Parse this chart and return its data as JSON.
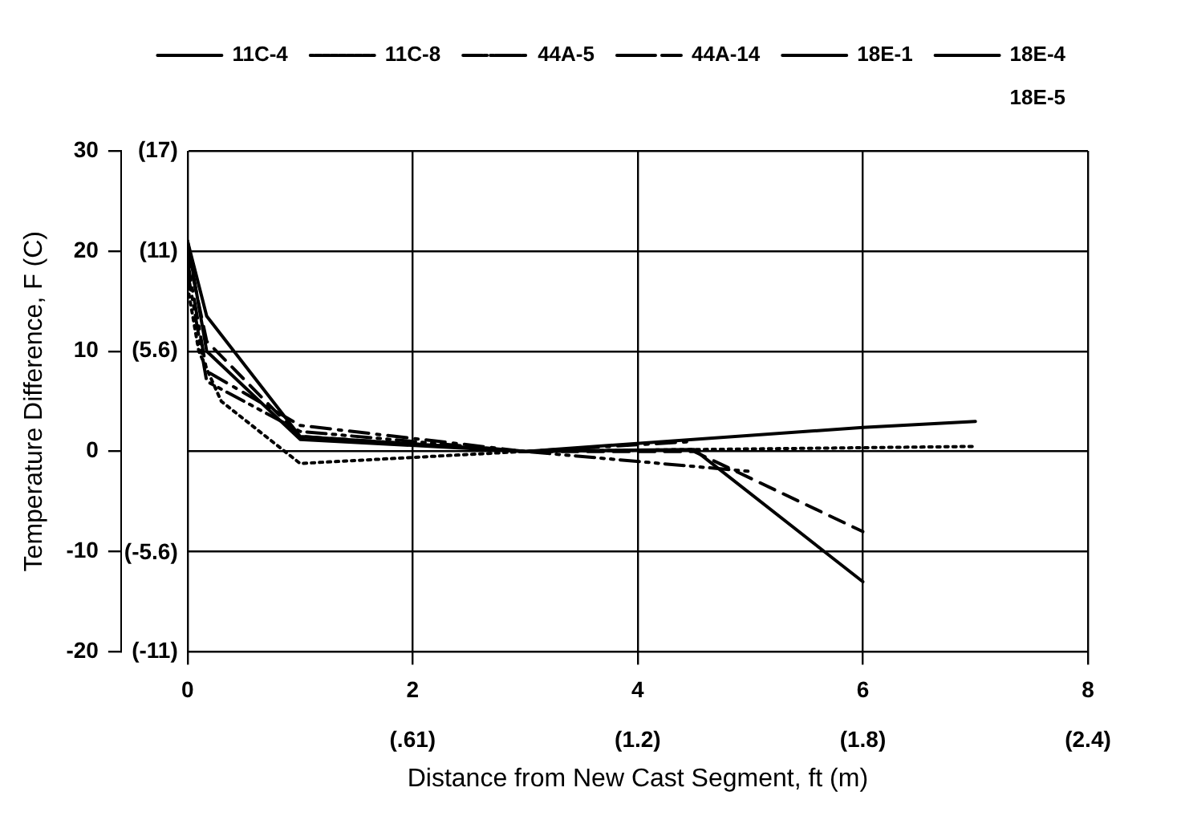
{
  "chart_data": {
    "type": "line",
    "xlabel": "Distance from New Cast Segment, ft (m)",
    "ylabel": "Temperature Difference, F (C)",
    "xlim": [
      0,
      8
    ],
    "ylim": [
      -20,
      30
    ],
    "xticks": [
      0,
      2,
      4,
      6,
      8
    ],
    "yticks": [
      -20,
      -10,
      0,
      10,
      20,
      30
    ],
    "x2lim": [
      0,
      2.44
    ],
    "x2ticks": [
      {
        "value": 0,
        "label": null
      },
      {
        "value": 0.61,
        "label": "(.61)"
      },
      {
        "value": 1.22,
        "label": "(1.2)"
      },
      {
        "value": 1.83,
        "label": "(1.8)"
      },
      {
        "value": 2.44,
        "label": "(2.4)"
      }
    ],
    "y2lim": [
      -11.1,
      16.7
    ],
    "y2ticks": [
      {
        "value": -11.1,
        "label": "(-11)"
      },
      {
        "value": -5.6,
        "label": "(-5.6)"
      },
      {
        "value": 0,
        "label": null
      },
      {
        "value": 5.6,
        "label": "(5.6)"
      },
      {
        "value": 11.1,
        "label": "(11)"
      },
      {
        "value": 16.7,
        "label": "(17)"
      }
    ],
    "grid": true,
    "legend": "top right",
    "marker": "none",
    "series": [
      {
        "name": "11C-4",
        "color": "#000000",
        "line_style": "solid",
        "x": [
          0,
          0.17,
          1,
          3,
          6,
          7
        ],
        "values": [
          21,
          10,
          1.2,
          0,
          2.4,
          3
        ]
      },
      {
        "name": "11C-8",
        "color": "#000000",
        "line_style": "dotted",
        "x": [
          0,
          0.1,
          0.3,
          1,
          3,
          7
        ],
        "values": [
          16.5,
          10,
          5,
          -1.2,
          0,
          0.5
        ]
      },
      {
        "name": "44A-5",
        "color": "#000000",
        "line_style": "dashdot",
        "x": [
          0,
          0.17,
          1,
          3,
          4.5
        ],
        "values": [
          19,
          8,
          2.6,
          0,
          1
        ]
      },
      {
        "name": "44A-14",
        "color": "#000000",
        "line_style": "dashdotdot",
        "x": [
          0,
          0.17,
          1,
          3,
          5
        ],
        "values": [
          18,
          7,
          2,
          0,
          -2
        ]
      },
      {
        "name": "18E-1",
        "color": "#000000",
        "line_style": "dashed",
        "x": [
          0,
          0.17,
          1,
          3,
          4.5,
          6
        ],
        "values": [
          20,
          11,
          1.5,
          0,
          0,
          -8
        ]
      },
      {
        "name": "18E-4",
        "color": "#000000",
        "line_style": "solid",
        "x": [
          0,
          0.17,
          1,
          3,
          4.5,
          6
        ],
        "values": [
          21,
          13.5,
          1.5,
          0,
          0.2,
          -13
        ]
      },
      {
        "name": "18E-5"
      }
    ]
  }
}
